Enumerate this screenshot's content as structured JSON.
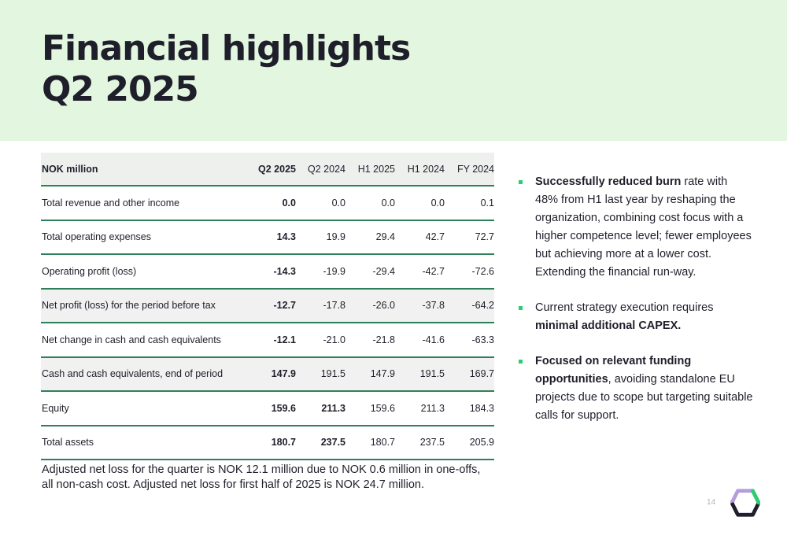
{
  "title": {
    "line1": "Financial highlights",
    "line2": "Q2 2025"
  },
  "table": {
    "columns": [
      "NOK million",
      "Q2 2025",
      "Q2 2024",
      "H1 2025",
      "H1 2024",
      "FY 2024"
    ],
    "rows": [
      {
        "label": "Total revenue and other income",
        "values": [
          "0.0",
          "0.0",
          "0.0",
          "0.0",
          "0.1"
        ]
      },
      {
        "label": "Total operating expenses",
        "values": [
          "14.3",
          "19.9",
          "29.4",
          "42.7",
          "72.7"
        ]
      },
      {
        "label": "Operating profit (loss)",
        "values": [
          "-14.3",
          "-19.9",
          "-29.4",
          "-42.7",
          "-72.6"
        ]
      },
      {
        "label": "Net profit (loss) for the period before tax",
        "values": [
          "-12.7",
          "-17.8",
          "-26.0",
          "-37.8",
          "-64.2"
        ]
      },
      {
        "label": "Net change in cash and cash equivalents",
        "values": [
          "-12.1",
          "-21.0",
          "-21.8",
          "-41.6",
          "-63.3"
        ]
      },
      {
        "label": "Cash and cash equivalents, end of period",
        "values": [
          "147.9",
          "191.5",
          "147.9",
          "191.5",
          "169.7"
        ]
      },
      {
        "label": "Equity",
        "values": [
          "159.6",
          "211.3",
          "159.6",
          "211.3",
          "184.3"
        ]
      },
      {
        "label": "Total assets",
        "values": [
          "180.7",
          "237.5",
          "180.7",
          "237.5",
          "205.9"
        ]
      }
    ]
  },
  "footnote": "Adjusted net loss for the quarter is NOK 12.1 million due to NOK 0.6 million in one-offs, all non-cash cost. Adjusted net loss for first half of 2025 is NOK 24.7 million.",
  "bullets": [
    {
      "bold": "Successfully reduced burn",
      "text": " rate with 48% from H1 last year by reshaping the organization, combining cost focus with a higher competence level; fewer employees but achieving more at a lower cost. Extending the financial run-way."
    },
    {
      "text": "Current strategy execution requires ",
      "bold": "minimal additional CAPEX."
    },
    {
      "bold": "Focused on relevant funding opportunities",
      "text": ", avoiding standalone EU projects due to scope but targeting suitable calls for support."
    }
  ],
  "page_number": "14",
  "colors": {
    "header_band": "#e3f6df",
    "rule": "#2f7f5a",
    "bullet_marker": "#2ecc71",
    "logo_purple": "#b39ddb",
    "logo_green": "#2ecc71",
    "logo_dark": "#1f1f2b"
  },
  "logo": "hexagon-logo-icon"
}
